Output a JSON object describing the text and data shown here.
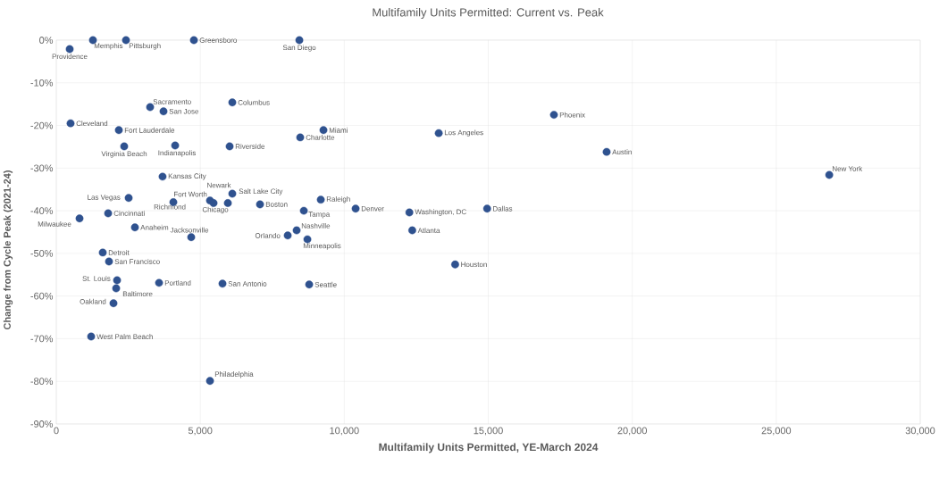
{
  "chart_data": {
    "type": "scatter",
    "title": "Multifamily Units Permitted: Current vs. Peak",
    "xlabel": "Multifamily Units Permitted, YE-March 2024",
    "ylabel": "Change from Cycle Peak (2021-24)",
    "x": [
      465,
      1272,
      2420,
      4778,
      8440,
      3258,
      3723,
      6112,
      496,
      2172,
      2358,
      4127,
      6019,
      8470,
      9277,
      13280,
      17280,
      19110,
      26840,
      3690,
      5957,
      6112,
      5337,
      4065,
      5461,
      2513,
      7074,
      9184,
      8595,
      10394,
      12260,
      14960,
      1800,
      807,
      2730,
      4685,
      8036,
      8346,
      8719,
      12360,
      1613,
      1830,
      13850,
      2110,
      2079,
      3568,
      5771,
      8781,
      1986,
      1210,
      5337
    ],
    "values": [
      -2.1,
      0,
      0,
      0,
      0,
      -15.7,
      -16.7,
      -14.6,
      -19.5,
      -21.1,
      -24.9,
      -24.7,
      -24.9,
      -22.8,
      -21.1,
      -21.8,
      -17.5,
      -26.2,
      -31.6,
      -32.0,
      -38.2,
      -36.0,
      -37.6,
      -38.0,
      -38.2,
      -37.0,
      -38.5,
      -37.4,
      -40.0,
      -39.5,
      -40.4,
      -39.5,
      -40.6,
      -41.8,
      -43.9,
      -46.2,
      -45.8,
      -44.6,
      -46.7,
      -44.6,
      -49.8,
      -51.9,
      -52.6,
      -56.3,
      -58.2,
      -56.9,
      -57.1,
      -57.3,
      -61.7,
      -69.5,
      -79.9
    ],
    "color": "#2f528f",
    "marker": "circle",
    "grid": true,
    "xlim": [
      0,
      30000
    ],
    "xticks": [
      {
        "value": 0,
        "label": "0"
      },
      {
        "value": 5000,
        "label": "5,000"
      },
      {
        "value": 10000,
        "label": "10,000"
      },
      {
        "value": 15000,
        "label": "15,000"
      },
      {
        "value": 20000,
        "label": "20,000"
      },
      {
        "value": 25000,
        "label": "25,000"
      },
      {
        "value": 30000,
        "label": "30,000"
      }
    ],
    "ylim": [
      -90,
      0
    ],
    "yticks": [
      {
        "value": -90,
        "label": "-90%"
      },
      {
        "value": -80,
        "label": "-80%"
      },
      {
        "value": -70,
        "label": "-70%"
      },
      {
        "value": -60,
        "label": "-60%"
      },
      {
        "value": -50,
        "label": "-50%"
      },
      {
        "value": -40,
        "label": "-40%"
      },
      {
        "value": -30,
        "label": "-30%"
      },
      {
        "value": -20,
        "label": "-20%"
      },
      {
        "value": -10,
        "label": "-10%"
      },
      {
        "value": 0,
        "label": "0%"
      }
    ],
    "annotations": [
      {
        "text": "Providence",
        "x": 465,
        "y": -2.1
      },
      {
        "text": "Memphis",
        "x": 1272,
        "y": 0
      },
      {
        "text": "Pittsburgh",
        "x": 2420,
        "y": 0
      },
      {
        "text": "Greensboro",
        "x": 4778,
        "y": 0
      },
      {
        "text": "San Diego",
        "x": 8440,
        "y": 0
      },
      {
        "text": "Sacramento",
        "x": 3258,
        "y": -15.7
      },
      {
        "text": "San Jose",
        "x": 3723,
        "y": -16.7
      },
      {
        "text": "Columbus",
        "x": 6112,
        "y": -14.6
      },
      {
        "text": "Cleveland",
        "x": 496,
        "y": -19.5
      },
      {
        "text": "Fort Lauderdale",
        "x": 2172,
        "y": -21.1
      },
      {
        "text": "Virginia Beach",
        "x": 2358,
        "y": -24.9
      },
      {
        "text": "Indianapolis",
        "x": 4127,
        "y": -24.7
      },
      {
        "text": "Riverside",
        "x": 6019,
        "y": -24.9
      },
      {
        "text": "Charlotte",
        "x": 8470,
        "y": -22.8
      },
      {
        "text": "Miami",
        "x": 9277,
        "y": -21.1
      },
      {
        "text": "Los Angeles",
        "x": 13280,
        "y": -21.8
      },
      {
        "text": "Phoenix",
        "x": 17280,
        "y": -17.5
      },
      {
        "text": "Austin",
        "x": 19110,
        "y": -26.2
      },
      {
        "text": "New York",
        "x": 26840,
        "y": -31.6
      },
      {
        "text": "Kansas City",
        "x": 3690,
        "y": -32.0
      },
      {
        "text": "Newark",
        "x": 5957,
        "y": -38.2
      },
      {
        "text": "Salt Lake City",
        "x": 6112,
        "y": -36.0
      },
      {
        "text": "Fort Worth",
        "x": 5337,
        "y": -37.6
      },
      {
        "text": "Richmond",
        "x": 4065,
        "y": -38.0
      },
      {
        "text": "Chicago",
        "x": 5461,
        "y": -38.2
      },
      {
        "text": "Las Vegas",
        "x": 2513,
        "y": -37.0
      },
      {
        "text": "Boston",
        "x": 7074,
        "y": -38.5
      },
      {
        "text": "Raleigh",
        "x": 9184,
        "y": -37.4
      },
      {
        "text": "Tampa",
        "x": 8595,
        "y": -40.0
      },
      {
        "text": "Denver",
        "x": 10394,
        "y": -39.5
      },
      {
        "text": "Washington, DC",
        "x": 12260,
        "y": -40.4
      },
      {
        "text": "Dallas",
        "x": 14960,
        "y": -39.5
      },
      {
        "text": "Cincinnati",
        "x": 1800,
        "y": -40.6
      },
      {
        "text": "Milwaukee",
        "x": 807,
        "y": -41.8
      },
      {
        "text": "Anaheim",
        "x": 2730,
        "y": -43.9
      },
      {
        "text": "Jacksonville",
        "x": 4685,
        "y": -46.2
      },
      {
        "text": "Orlando",
        "x": 8036,
        "y": -45.8
      },
      {
        "text": "Nashville",
        "x": 8346,
        "y": -44.6
      },
      {
        "text": "Minneapolis",
        "x": 8719,
        "y": -46.7
      },
      {
        "text": "Atlanta",
        "x": 12360,
        "y": -44.6
      },
      {
        "text": "Detroit",
        "x": 1613,
        "y": -49.8
      },
      {
        "text": "San Francisco",
        "x": 1830,
        "y": -51.9
      },
      {
        "text": "Houston",
        "x": 13850,
        "y": -52.6
      },
      {
        "text": "St. Louis",
        "x": 2110,
        "y": -56.3
      },
      {
        "text": "Baltimore",
        "x": 2079,
        "y": -58.2
      },
      {
        "text": "Portland",
        "x": 3568,
        "y": -56.9
      },
      {
        "text": "San Antonio",
        "x": 5771,
        "y": -57.1
      },
      {
        "text": "Seattle",
        "x": 8781,
        "y": -57.3
      },
      {
        "text": "Oakland",
        "x": 1986,
        "y": -61.7
      },
      {
        "text": "West Palm Beach",
        "x": 1210,
        "y": -69.5
      },
      {
        "text": "Philadelphia",
        "x": 5337,
        "y": -79.9
      }
    ]
  }
}
